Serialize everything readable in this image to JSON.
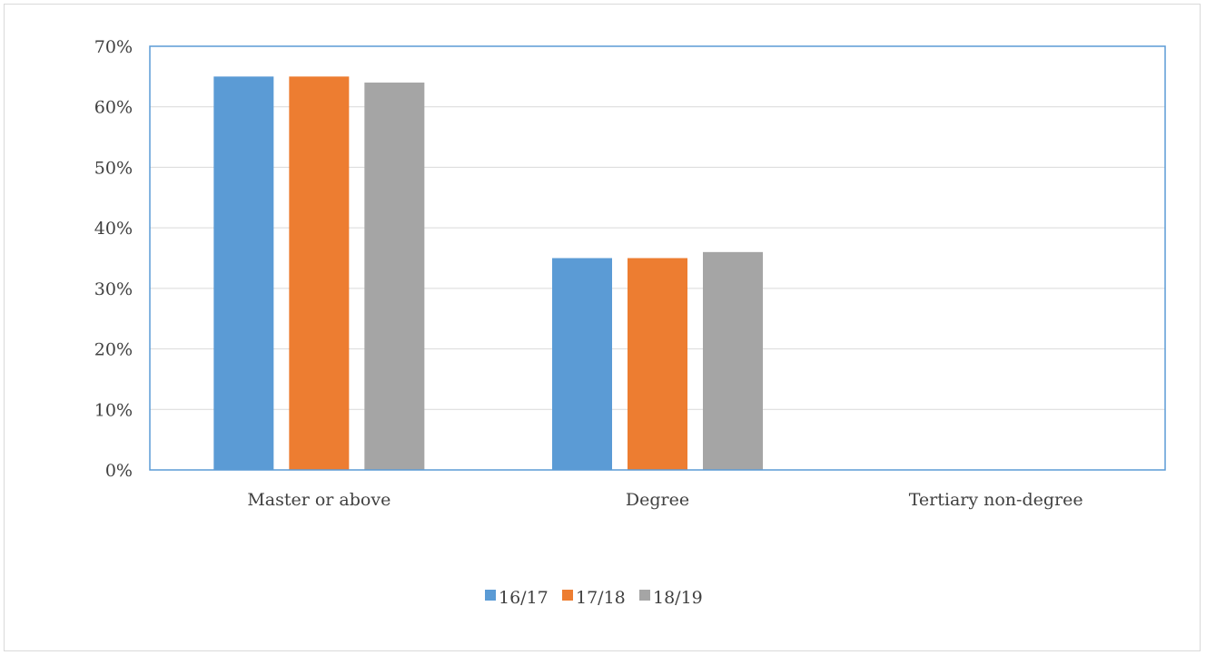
{
  "chart_data": {
    "type": "bar",
    "title": "",
    "xlabel": "",
    "ylabel": "",
    "categories": [
      "Master or above",
      "Degree",
      "Tertiary non-degree"
    ],
    "series": [
      {
        "name": "16/17",
        "color": "#5b9bd5",
        "values": [
          0.65,
          0.35,
          0.0
        ]
      },
      {
        "name": "17/18",
        "color": "#ed7d31",
        "values": [
          0.65,
          0.35,
          0.0
        ]
      },
      {
        "name": "18/19",
        "color": "#a5a5a5",
        "values": [
          0.64,
          0.36,
          0.0
        ]
      }
    ],
    "ylim": [
      0,
      0.7
    ],
    "yticks": [
      "0%",
      "10%",
      "20%",
      "30%",
      "40%",
      "50%",
      "60%",
      "70%"
    ],
    "grid": true,
    "legend_position": "bottom",
    "plot_border_color": "#5b9bd5",
    "gridline_color": "#d9d9d9"
  }
}
